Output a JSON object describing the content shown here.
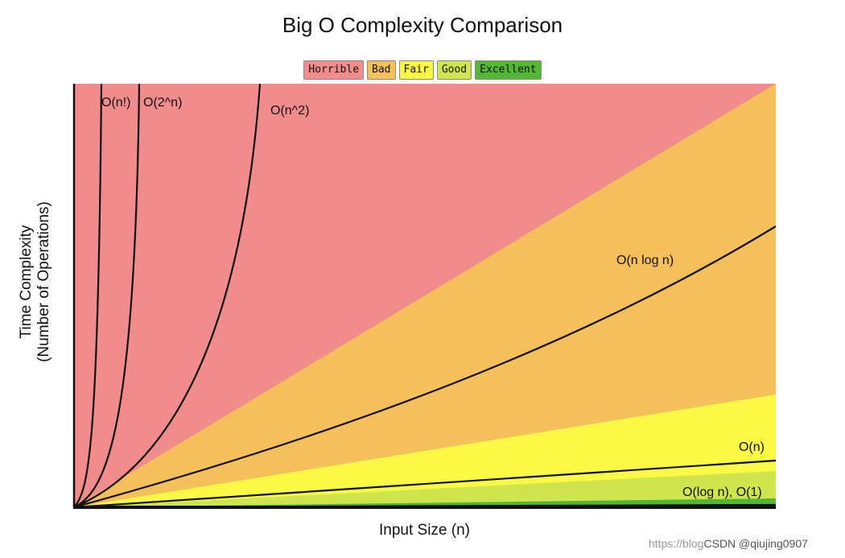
{
  "chart_data": {
    "type": "line",
    "title": "Big O Complexity Comparison",
    "xlabel": "Input Size (n)",
    "ylabel": [
      "Time Complexity",
      "(Number of Operations)"
    ],
    "legend": [
      {
        "label": "Horrible",
        "color": "#f08c8c"
      },
      {
        "label": "Bad",
        "color": "#f5c05c"
      },
      {
        "label": "Fair",
        "color": "#fafa46"
      },
      {
        "label": "Good",
        "color": "#cfe54e"
      },
      {
        "label": "Excellent",
        "color": "#53b733"
      }
    ],
    "legend_position": "top",
    "series": [
      {
        "name": "O(n!)",
        "label": "O(n!)"
      },
      {
        "name": "O(2^n)",
        "label": "O(2^n)"
      },
      {
        "name": "O(n^2)",
        "label": "O(n^2)"
      },
      {
        "name": "O(n log n)",
        "label": "O(n log n)"
      },
      {
        "name": "O(n)",
        "label": "O(n)"
      },
      {
        "name": "O(log n), O(1)",
        "label": "O(log n), O(1)"
      }
    ],
    "grid": false
  },
  "watermark": {
    "faint": "https://blog",
    "strong": "CSDN @qiujing0907"
  }
}
